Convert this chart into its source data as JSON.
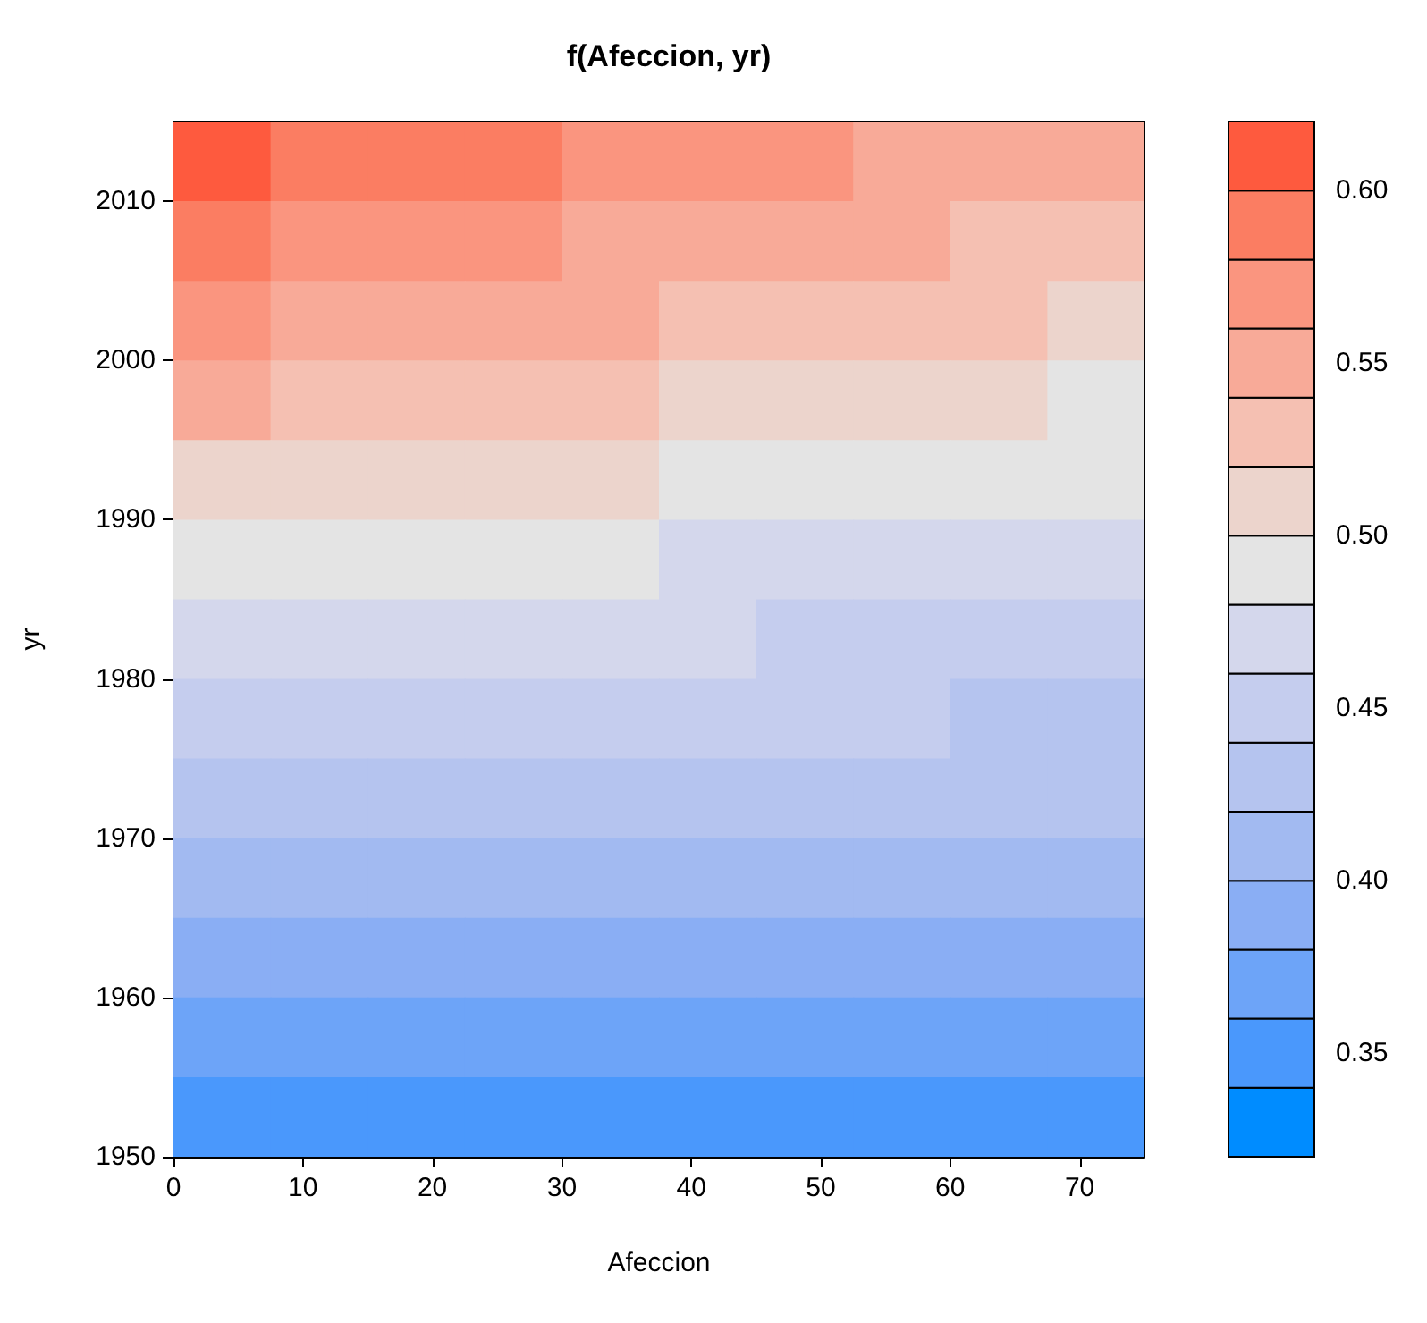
{
  "chart_data": {
    "type": "heatmap",
    "title": "f(Afeccion, yr)",
    "xlabel": "Afeccion",
    "ylabel": "yr",
    "x": [
      3.75,
      11.25,
      18.75,
      26.25,
      33.75,
      41.25,
      48.75,
      56.25,
      63.75,
      71.25
    ],
    "y": [
      2012.5,
      2007.5,
      2002.5,
      1997.5,
      1992.5,
      1987.5,
      1982.5,
      1977.5,
      1972.5,
      1967.5,
      1962.5,
      1957.5,
      1952.5
    ],
    "xlim": [
      0,
      75
    ],
    "xticks": [
      0,
      10,
      20,
      30,
      40,
      50,
      60,
      70
    ],
    "ylim": [
      1950,
      2015
    ],
    "yticks": [
      1950,
      1960,
      1970,
      1980,
      1990,
      2000,
      2010
    ],
    "clim": [
      0.32,
      0.62
    ],
    "cticks": [
      0.35,
      {
        "value": 0.4,
        "label": "0.40"
      },
      0.45,
      {
        "value": 0.5,
        "label": "0.50"
      },
      0.55,
      {
        "value": 0.6,
        "label": "0.60"
      }
    ],
    "colors": [
      "#008cff",
      "#4a98fc",
      "#6da4f8",
      "#8aaef4",
      "#a2baf1",
      "#b5c4ef",
      "#c5cdee",
      "#d4d7ec",
      "#e4e4e4",
      "#ecd4cc",
      "#f5c0b2",
      "#f8aa98",
      "#fa957f",
      "#fb7d62",
      "#fe5a3e"
    ],
    "cells": [
      [
        0.606,
        0.599,
        0.592,
        0.586,
        0.579,
        0.572,
        0.565,
        0.559,
        0.552,
        0.545
      ],
      [
        0.583,
        0.577,
        0.571,
        0.565,
        0.559,
        0.554,
        0.548,
        0.542,
        0.536,
        0.53
      ],
      [
        0.561,
        0.556,
        0.551,
        0.546,
        0.541,
        0.535,
        0.53,
        0.525,
        0.52,
        0.515
      ],
      [
        0.54,
        0.535,
        0.531,
        0.526,
        0.522,
        0.517,
        0.513,
        0.508,
        0.504,
        0.499
      ],
      [
        0.518,
        0.514,
        0.511,
        0.507,
        0.503,
        0.499,
        0.495,
        0.491,
        0.488,
        0.484
      ],
      [
        0.496,
        0.493,
        0.49,
        0.487,
        0.484,
        0.48,
        0.477,
        0.474,
        0.471,
        0.468
      ],
      [
        0.474,
        0.471,
        0.469,
        0.467,
        0.464,
        0.462,
        0.459,
        0.457,
        0.455,
        0.452
      ],
      [
        0.452,
        0.45,
        0.449,
        0.447,
        0.445,
        0.444,
        0.442,
        0.44,
        0.439,
        0.437
      ],
      [
        0.431,
        0.43,
        0.429,
        0.429,
        0.427,
        0.426,
        0.425,
        0.424,
        0.423,
        0.422
      ],
      [
        0.409,
        0.409,
        0.408,
        0.408,
        0.408,
        0.407,
        0.407,
        0.407,
        0.406,
        0.406
      ],
      [
        0.387,
        0.388,
        0.388,
        0.388,
        0.389,
        0.389,
        0.39,
        0.39,
        0.39,
        0.391
      ],
      [
        0.365,
        0.366,
        0.366,
        0.367,
        0.368,
        0.369,
        0.371,
        0.372,
        0.373,
        0.374
      ],
      [
        0.343,
        0.345,
        0.346,
        0.348,
        0.35,
        0.352,
        0.354,
        0.355,
        0.357,
        0.359
      ]
    ]
  }
}
